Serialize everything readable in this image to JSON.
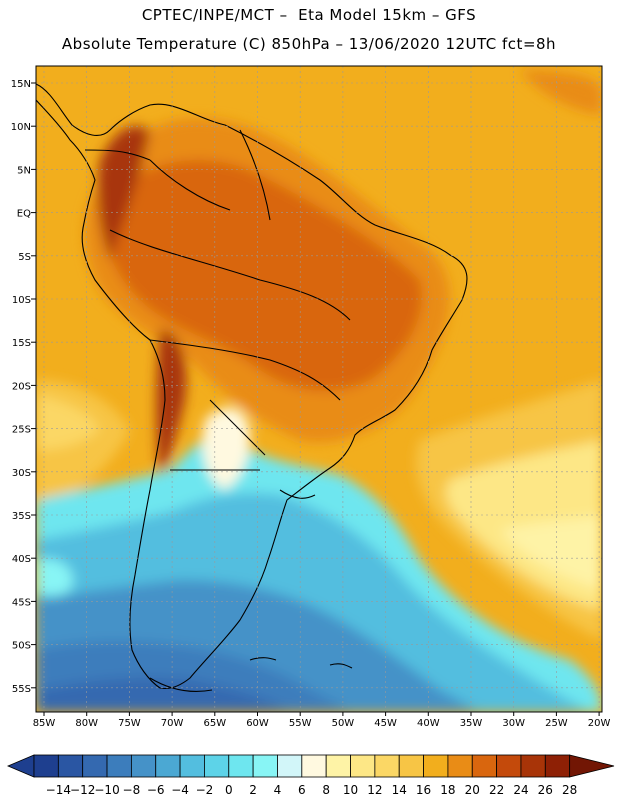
{
  "title": {
    "line1": "CPTEC/INPE/MCT –  Eta Model 15km – GFS",
    "line2": "Absolute Temperature (C) 850hPa – 13/06/2020 12UTC fct=8h"
  },
  "map": {
    "lat_labels": [
      "15N",
      "10N",
      "5N",
      "EQ",
      "5S",
      "10S",
      "15S",
      "20S",
      "25S",
      "30S",
      "35S",
      "40S",
      "45S",
      "50S",
      "55S"
    ],
    "lon_labels": [
      "85W",
      "80W",
      "75W",
      "70W",
      "65W",
      "60W",
      "55W",
      "50W",
      "45W",
      "40W",
      "35W",
      "30W",
      "25W",
      "20W"
    ],
    "gridlines": true
  },
  "colorbar": {
    "labels": [
      "-14",
      "-12",
      "-10",
      "-8",
      "-6",
      "-4",
      "-2",
      "0",
      "2",
      "4",
      "6",
      "8",
      "10",
      "12",
      "14",
      "16",
      "18",
      "20",
      "22",
      "24",
      "26",
      "28"
    ],
    "colors": [
      "#1e3f8f",
      "#2a56a3",
      "#3469b0",
      "#3c7dbc",
      "#4592c8",
      "#4ba8d3",
      "#53bedf",
      "#5dd3e8",
      "#6ee6ef",
      "#88f5f5",
      "#d2f6f9",
      "#fff9e0",
      "#fef3a6",
      "#fde786",
      "#fbd765",
      "#f7c545",
      "#f2ae1d",
      "#e98c16",
      "#d9660e",
      "#c44a0b",
      "#a83408",
      "#8e2005",
      "#721604"
    ]
  }
}
